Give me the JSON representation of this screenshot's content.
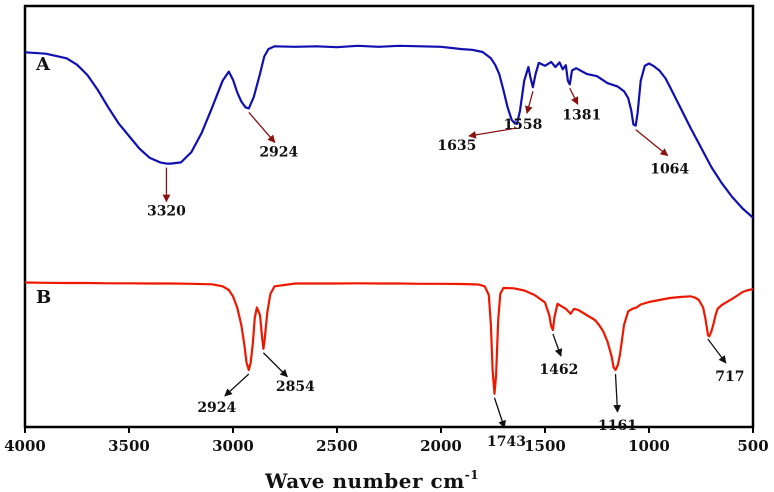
{
  "chart_data": {
    "type": "line",
    "title": "",
    "xlabel": "Wave number cm",
    "xlabel_sup": "-1",
    "ylabel": "",
    "xlim": [
      4000,
      500
    ],
    "x_reversed": true,
    "x_ticks": [
      4000,
      3500,
      3000,
      2500,
      2000,
      1500,
      1000,
      500
    ],
    "grid": false,
    "y_ticks_shown": false,
    "series": [
      {
        "panel": "A",
        "color": "#1010b0",
        "x": [
          4000,
          3900,
          3800,
          3750,
          3700,
          3650,
          3600,
          3550,
          3500,
          3450,
          3400,
          3350,
          3320,
          3300,
          3250,
          3200,
          3150,
          3100,
          3050,
          3020,
          3000,
          2980,
          2960,
          2940,
          2924,
          2900,
          2870,
          2850,
          2830,
          2800,
          2700,
          2600,
          2500,
          2400,
          2300,
          2200,
          2100,
          2000,
          1900,
          1850,
          1800,
          1760,
          1740,
          1720,
          1700,
          1680,
          1660,
          1645,
          1635,
          1620,
          1600,
          1580,
          1570,
          1558,
          1545,
          1530,
          1500,
          1470,
          1450,
          1430,
          1415,
          1400,
          1390,
          1381,
          1370,
          1350,
          1300,
          1250,
          1200,
          1150,
          1120,
          1100,
          1085,
          1075,
          1064,
          1055,
          1040,
          1020,
          1000,
          980,
          950,
          920,
          900,
          850,
          800,
          750,
          700,
          650,
          600,
          550,
          500
        ],
        "y": [
          -0.36,
          -0.42,
          -0.62,
          -0.9,
          -1.35,
          -2.0,
          -2.75,
          -3.45,
          -4.0,
          -4.55,
          -4.95,
          -5.15,
          -5.2,
          -5.2,
          -5.15,
          -4.7,
          -3.85,
          -2.75,
          -1.6,
          -1.2,
          -1.55,
          -2.1,
          -2.5,
          -2.75,
          -2.8,
          -2.3,
          -1.3,
          -0.55,
          -0.22,
          -0.1,
          -0.12,
          -0.1,
          -0.14,
          -0.08,
          -0.12,
          -0.08,
          -0.1,
          -0.12,
          -0.22,
          -0.25,
          -0.35,
          -0.62,
          -0.9,
          -1.3,
          -2.0,
          -2.75,
          -3.3,
          -3.45,
          -3.48,
          -2.9,
          -1.6,
          -1.0,
          -1.45,
          -1.88,
          -1.3,
          -0.82,
          -0.95,
          -0.78,
          -1.0,
          -0.8,
          -1.1,
          -0.92,
          -1.6,
          -1.75,
          -1.15,
          -1.05,
          -1.3,
          -1.4,
          -1.7,
          -1.85,
          -2.05,
          -2.35,
          -2.9,
          -3.5,
          -3.55,
          -3.0,
          -1.6,
          -0.95,
          -0.85,
          -0.95,
          -1.15,
          -1.5,
          -1.85,
          -2.75,
          -3.65,
          -4.5,
          -5.35,
          -6.05,
          -6.65,
          -7.15,
          -7.55
        ]
      },
      {
        "panel": "B",
        "color": "#ee1800",
        "x": [
          4000,
          3900,
          3800,
          3700,
          3600,
          3500,
          3400,
          3300,
          3200,
          3100,
          3050,
          3020,
          3000,
          2980,
          2960,
          2945,
          2935,
          2924,
          2915,
          2905,
          2895,
          2885,
          2870,
          2860,
          2854,
          2848,
          2835,
          2820,
          2800,
          2700,
          2600,
          2500,
          2400,
          2300,
          2200,
          2100,
          2000,
          1900,
          1820,
          1790,
          1770,
          1760,
          1752,
          1743,
          1735,
          1725,
          1715,
          1700,
          1650,
          1600,
          1550,
          1500,
          1480,
          1470,
          1462,
          1455,
          1440,
          1420,
          1400,
          1377,
          1360,
          1340,
          1300,
          1260,
          1240,
          1220,
          1200,
          1180,
          1170,
          1161,
          1150,
          1140,
          1130,
          1120,
          1100,
          1080,
          1060,
          1040,
          1000,
          950,
          900,
          850,
          800,
          780,
          760,
          740,
          730,
          720,
          717,
          710,
          700,
          690,
          680,
          670,
          650,
          620,
          600,
          575,
          550,
          530,
          510,
          500
        ],
        "y": [
          0.1,
          0.09,
          0.08,
          0.08,
          0.07,
          0.07,
          0.06,
          0.06,
          0.05,
          0.03,
          -0.05,
          -0.2,
          -0.45,
          -0.9,
          -1.6,
          -2.4,
          -3.1,
          -3.4,
          -3.1,
          -2.35,
          -1.3,
          -0.9,
          -1.2,
          -2.1,
          -2.55,
          -2.2,
          -1.1,
          -0.35,
          -0.05,
          0.06,
          0.06,
          0.06,
          0.07,
          0.06,
          0.06,
          0.05,
          0.05,
          0.04,
          0.02,
          -0.05,
          -0.4,
          -1.6,
          -3.4,
          -4.35,
          -3.6,
          -1.4,
          -0.35,
          -0.12,
          -0.13,
          -0.22,
          -0.4,
          -0.7,
          -1.2,
          -1.65,
          -1.8,
          -1.3,
          -0.75,
          -0.85,
          -0.95,
          -1.15,
          -0.95,
          -1.0,
          -1.2,
          -1.4,
          -1.6,
          -1.85,
          -2.25,
          -2.85,
          -3.3,
          -3.4,
          -3.2,
          -2.8,
          -2.2,
          -1.6,
          -1.05,
          -0.95,
          -0.9,
          -0.78,
          -0.68,
          -0.6,
          -0.52,
          -0.48,
          -0.45,
          -0.5,
          -0.6,
          -0.9,
          -1.3,
          -1.8,
          -2.0,
          -2.05,
          -1.85,
          -1.55,
          -1.2,
          -0.95,
          -0.8,
          -0.65,
          -0.55,
          -0.42,
          -0.28,
          -0.22,
          -0.18,
          -0.17
        ]
      }
    ],
    "annotations": [
      {
        "panel": "A",
        "label": "3320",
        "x": 3320,
        "arrow_color": "#8b1010"
      },
      {
        "panel": "A",
        "label": "2924",
        "x": 2924,
        "arrow_color": "#8b1010"
      },
      {
        "panel": "A",
        "label": "1635",
        "x": 1635,
        "arrow_color": "#8b1010"
      },
      {
        "panel": "A",
        "label": "1558",
        "x": 1558,
        "arrow_color": "#8b1010"
      },
      {
        "panel": "A",
        "label": "1381",
        "x": 1381,
        "arrow_color": "#8b1010"
      },
      {
        "panel": "A",
        "label": "1064",
        "x": 1064,
        "arrow_color": "#8b1010"
      },
      {
        "panel": "B",
        "label": "2924",
        "x": 2924,
        "arrow_color": "#111111"
      },
      {
        "panel": "B",
        "label": "2854",
        "x": 2854,
        "arrow_color": "#111111"
      },
      {
        "panel": "B",
        "label": "1743",
        "x": 1743,
        "arrow_color": "#111111"
      },
      {
        "panel": "B",
        "label": "1462",
        "x": 1462,
        "arrow_color": "#111111"
      },
      {
        "panel": "B",
        "label": "1161",
        "x": 1161,
        "arrow_color": "#111111"
      },
      {
        "panel": "B",
        "label": "717",
        "x": 717,
        "arrow_color": "#111111"
      }
    ]
  }
}
